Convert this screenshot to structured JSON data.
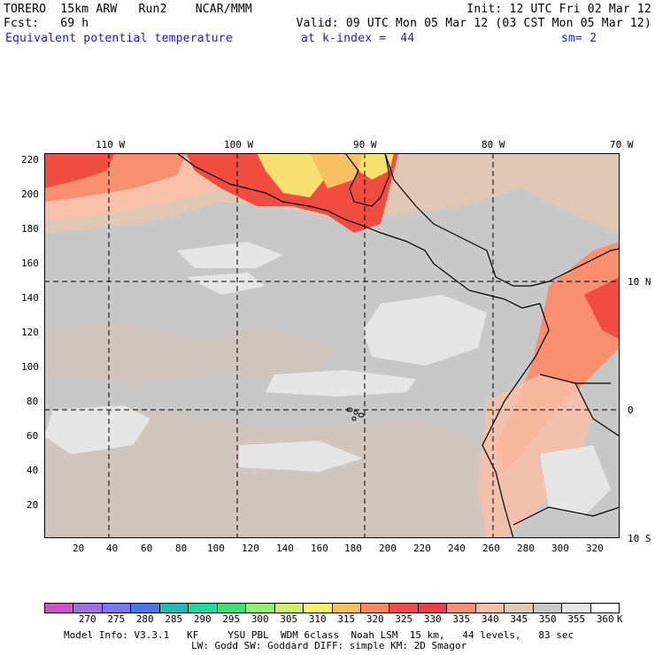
{
  "header": {
    "line1_left": "TORERO  15km ARW   Run2    NCAR/MMM",
    "line1_right": "Init: 12 UTC Fri 02 Mar 12",
    "line2_left": "Fcst:   69 h",
    "line2_right": "Valid: 09 UTC Mon 05 Mar 12 (03 CST Mon 05 Mar 12)",
    "field_name": "Equivalent potential temperature",
    "level": "at k-index =  44",
    "smoothing": "sm= 2"
  },
  "map": {
    "top_lon_labels": [
      "110 W",
      "100 W",
      "90 W",
      "80 W",
      "70 W"
    ],
    "right_lat_labels": [
      "10 N",
      "0",
      "10 S"
    ],
    "left_y_ticks": [
      "220",
      "200",
      "180",
      "160",
      "140",
      "120",
      "100",
      "80",
      "60",
      "40",
      "20"
    ],
    "bottom_x_ticks": [
      "20",
      "40",
      "60",
      "80",
      "100",
      "120",
      "140",
      "160",
      "180",
      "200",
      "220",
      "240",
      "260",
      "280",
      "300",
      "320"
    ],
    "grid_x_points": 335,
    "grid_y_points": 225,
    "background_color": "#c8c8c8",
    "land_border_color": "#000000"
  },
  "colorbar": {
    "colors": [
      "#d050d0",
      "#a070e0",
      "#7878f0",
      "#4a78e8",
      "#20b8b8",
      "#20d8a0",
      "#40e070",
      "#90f070",
      "#d0f070",
      "#f8f070",
      "#f8c060",
      "#f88a60",
      "#f04c40",
      "#f03c48",
      "#f89070",
      "#f8c0a8",
      "#e0c8b4",
      "#c8c8c8",
      "#e6e6e6",
      "#ffffff"
    ],
    "labels": [
      "270",
      "275",
      "280",
      "285",
      "290",
      "295",
      "300",
      "305",
      "310",
      "315",
      "320",
      "325",
      "330",
      "335",
      "340",
      "345",
      "350",
      "355",
      "360"
    ],
    "unit": "K"
  },
  "footer": {
    "line1": "Model Info: V3.3.1   KF     YSU PBL  WDM 6class  Noah LSM  15 km,   44 levels,   83 sec",
    "line2": "LW: Godd SW: Goddard DIFF: simple KM: 2D Smagor"
  }
}
